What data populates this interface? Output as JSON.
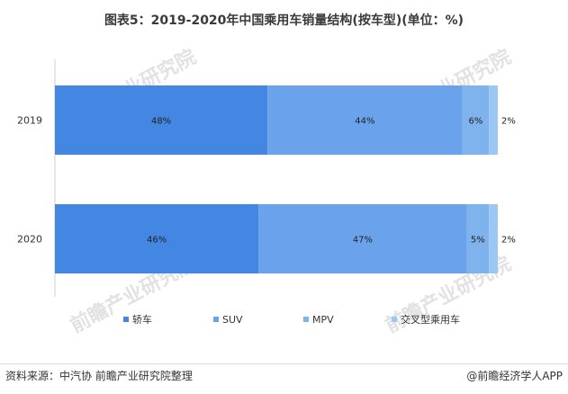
{
  "title": "图表5：2019-2020年中国乘用车销量结构(按车型)(单位：%)",
  "watermark": "前瞻产业研究院",
  "footer": {
    "source": "资料来源：中汽协 前瞻产业研究院整理",
    "brand": "@前瞻经济学人APP"
  },
  "chart_data": {
    "type": "bar",
    "orientation": "horizontal",
    "stacked": true,
    "categories": [
      "2019",
      "2020"
    ],
    "series": [
      {
        "name": "轿车",
        "values": [
          48,
          46
        ],
        "labels": [
          "48%",
          "46%"
        ],
        "color": "#4387e3"
      },
      {
        "name": "SUV",
        "values": [
          44,
          47
        ],
        "labels": [
          "44%",
          "47%"
        ],
        "color": "#6aa3ec"
      },
      {
        "name": "MPV",
        "values": [
          6,
          5
        ],
        "labels": [
          "6%",
          "5%"
        ],
        "color": "#7fb3ee"
      },
      {
        "name": "交叉型乘用车",
        "values": [
          2,
          2
        ],
        "labels": [
          "2%",
          "2%"
        ],
        "color": "#9cc6f3"
      }
    ],
    "xlim": [
      0,
      100
    ],
    "grid": false,
    "legend_position": "bottom"
  }
}
